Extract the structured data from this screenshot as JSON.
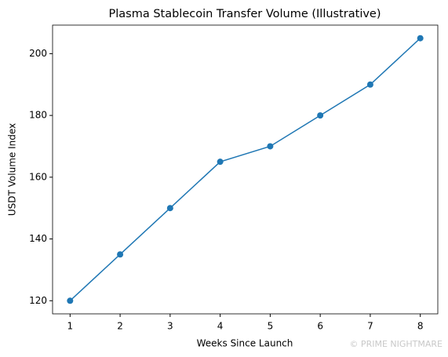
{
  "chart_data": {
    "type": "line",
    "title": "Plasma Stablecoin Transfer Volume (Illustrative)",
    "x_label": "Weeks Since Launch",
    "y_label": "USDT Volume Index",
    "x": [
      1,
      2,
      3,
      4,
      5,
      6,
      7,
      8
    ],
    "series": [
      {
        "name": "USDT Volume Index",
        "color": "#1f77b4",
        "values": [
          120,
          135,
          150,
          165,
          170,
          180,
          190,
          205
        ]
      }
    ],
    "xlim": [
      0.65,
      8.35
    ],
    "xticks": [
      1,
      2,
      3,
      4,
      5,
      6,
      7,
      8
    ],
    "ylim": [
      115.75,
      209.25
    ],
    "yticks": [
      120,
      140,
      160,
      180,
      200
    ],
    "markers": true,
    "grid": false,
    "watermark": "© PRIME NIGHTMARE"
  }
}
